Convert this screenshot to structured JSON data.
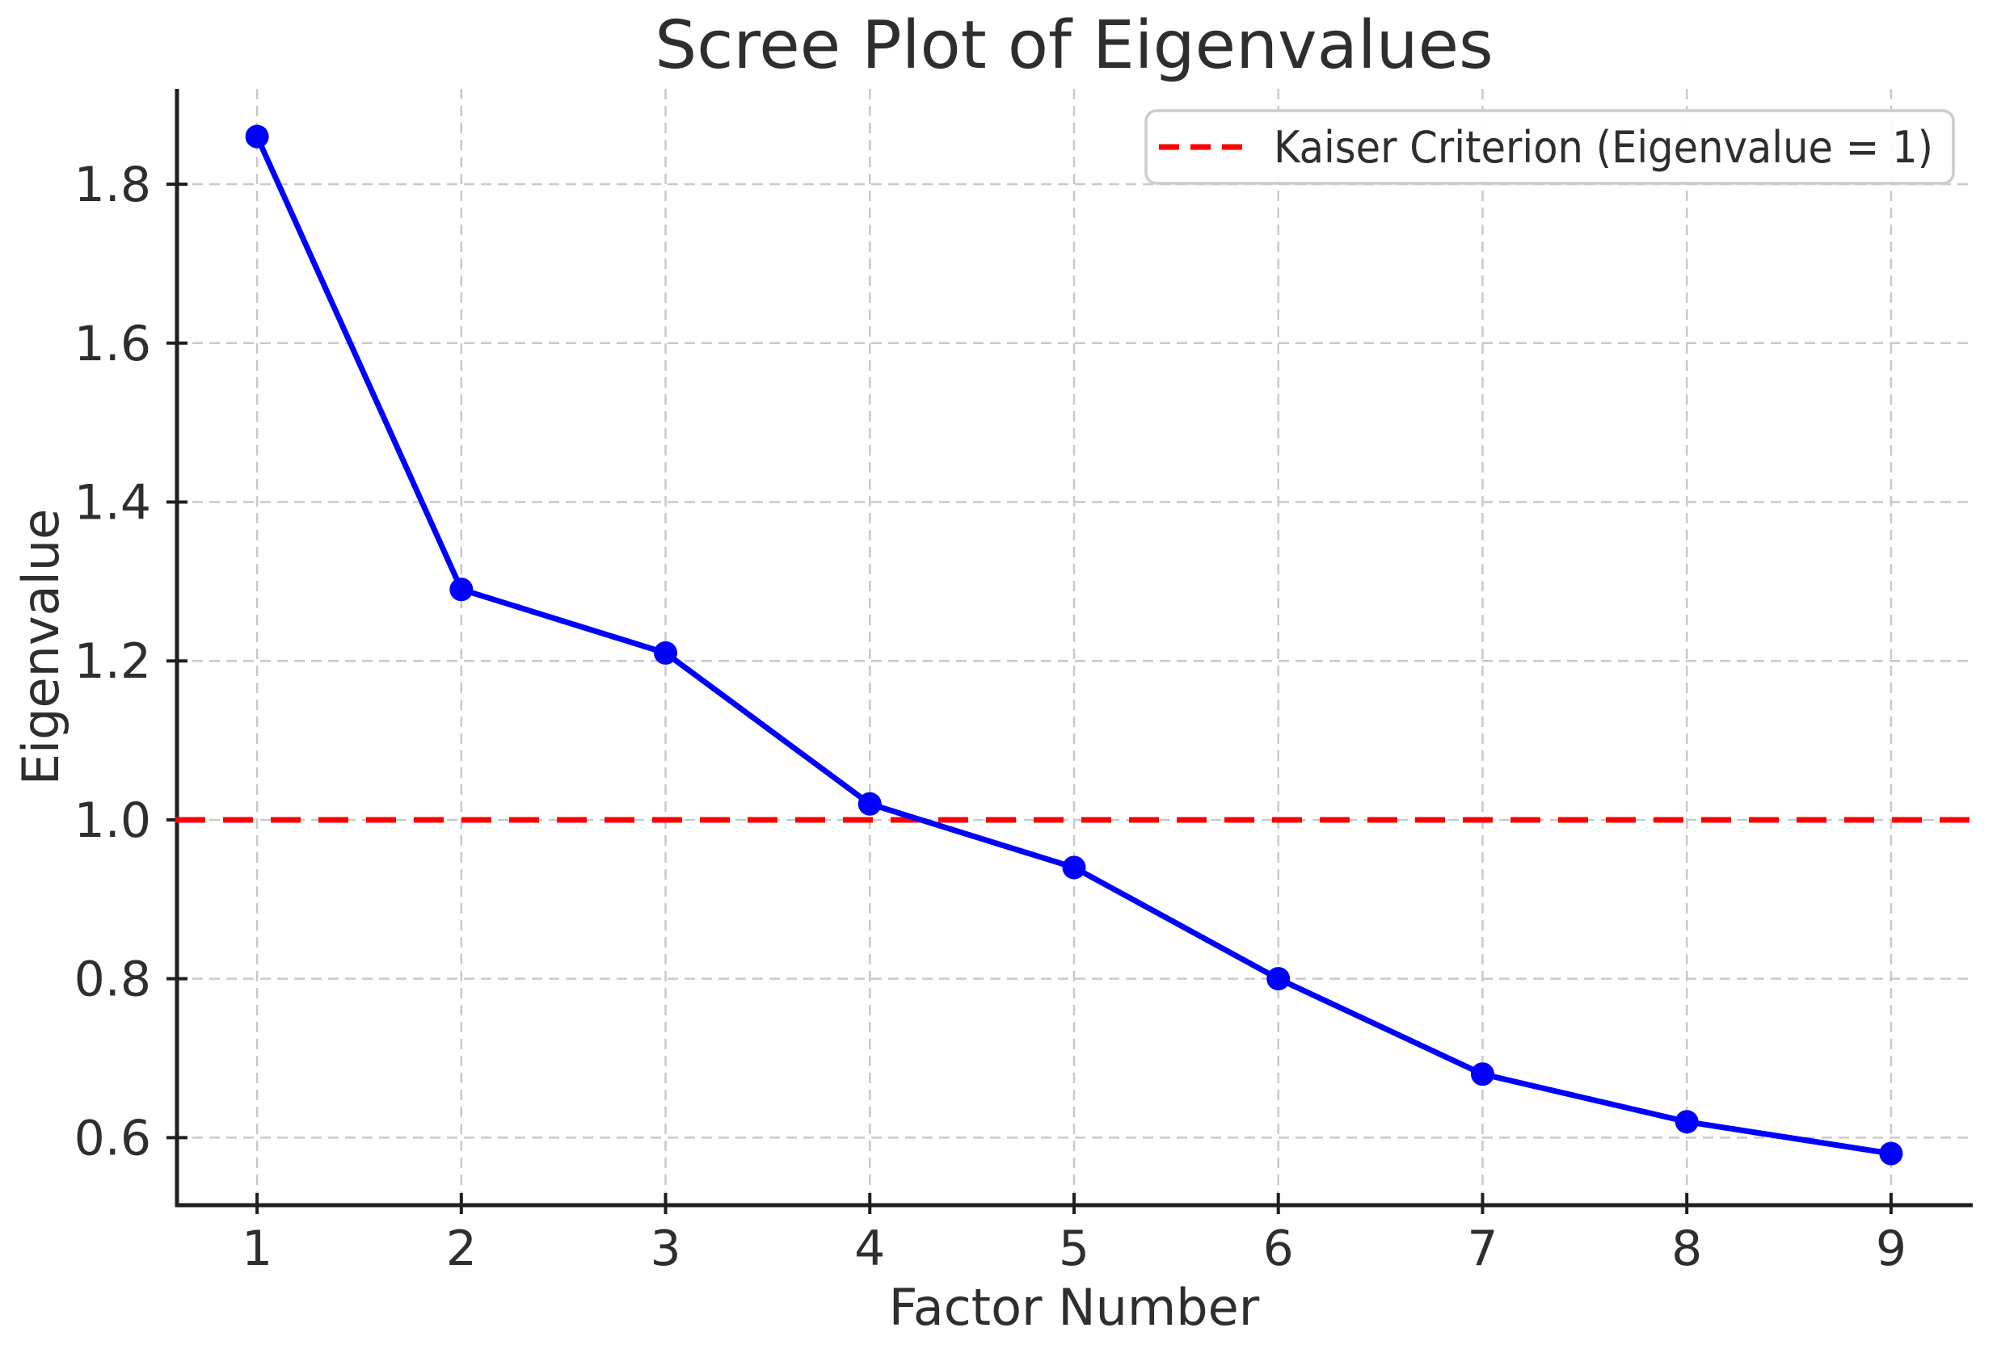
{
  "chart_data": {
    "type": "line",
    "title": "Scree Plot of Eigenvalues",
    "xlabel": "Factor Number",
    "ylabel": "Eigenvalue",
    "x": [
      1,
      2,
      3,
      4,
      5,
      6,
      7,
      8,
      9
    ],
    "series": [
      {
        "name": "Eigenvalues",
        "values": [
          1.86,
          1.29,
          1.21,
          1.02,
          0.94,
          0.8,
          0.68,
          0.62,
          0.58
        ]
      }
    ],
    "reference_line": {
      "y": 1.0,
      "label": "Kaiser Criterion (Eigenvalue = 1)"
    },
    "legend": {
      "entries": [
        "Kaiser Criterion (Eigenvalue = 1)"
      ],
      "position": "upper right"
    },
    "xticks": [
      1,
      2,
      3,
      4,
      5,
      6,
      7,
      8,
      9
    ],
    "yticks": [
      0.6,
      0.8,
      1.0,
      1.2,
      1.4,
      1.6,
      1.8
    ],
    "xlim": [
      0.6,
      9.4
    ],
    "ylim": [
      0.515,
      1.92
    ],
    "grid": true,
    "grid_style": "dashed",
    "marker": "circle",
    "colors": {
      "line": "#0000ff",
      "reference": "#ff0000",
      "grid": "#c9c9c9",
      "axis": "#1f1f1f",
      "text": "#2e2e2e",
      "legend_border": "#cccccc",
      "background": "#ffffff"
    }
  }
}
